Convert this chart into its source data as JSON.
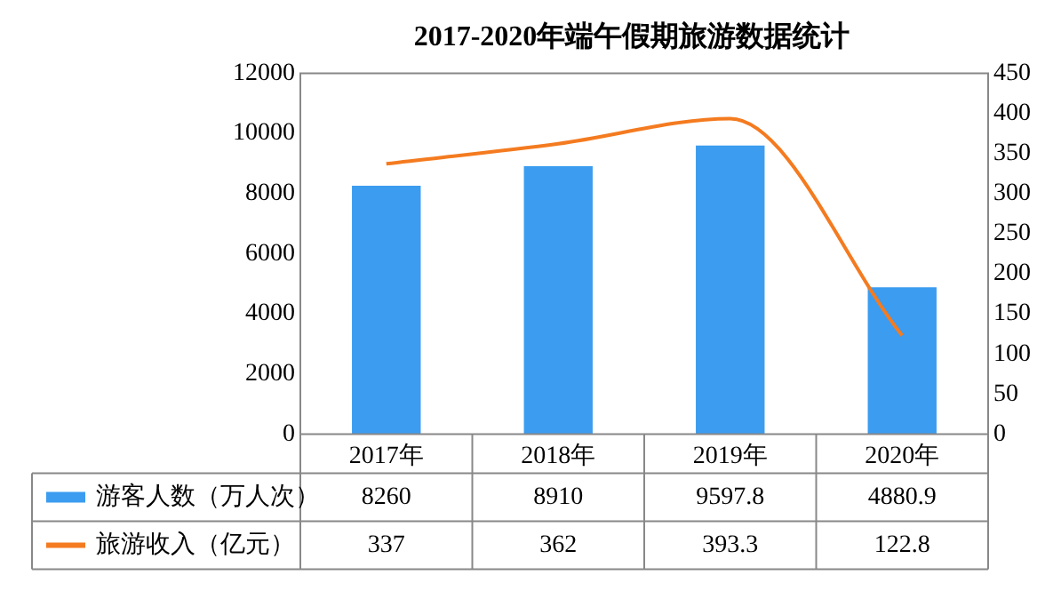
{
  "chart_data": {
    "type": "bar",
    "title": "2017-2020年端午假期旅游数据统计",
    "categories": [
      "2017年",
      "2018年",
      "2019年",
      "2020年"
    ],
    "series": [
      {
        "name": "游客人数（万人次）",
        "color": "#3b9cf0",
        "values": [
          8260,
          8910,
          9597.8,
          4880.9
        ]
      },
      {
        "name": "旅游收入（亿元）",
        "color": "#f47b20",
        "type": "line",
        "axis": "y2",
        "values": [
          337,
          362,
          393.3,
          122.8
        ]
      }
    ],
    "ylim": [
      0,
      12000
    ],
    "yticks": [
      0,
      2000,
      4000,
      6000,
      8000,
      10000,
      12000
    ],
    "y2lim": [
      0,
      450
    ],
    "y2ticks": [
      0,
      50,
      100,
      150,
      200,
      250,
      300,
      350,
      400,
      450
    ],
    "data_labels": true,
    "legend": "bottom left",
    "grid": false,
    "marker": "none"
  }
}
